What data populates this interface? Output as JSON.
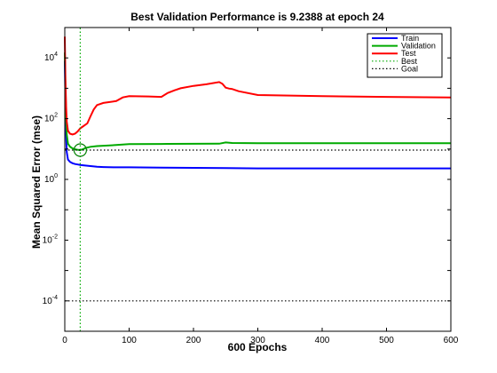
{
  "chart_data": {
    "type": "line",
    "title": "Best Validation Performance is 9.2388 at epoch 24",
    "xlabel": "600 Epochs",
    "ylabel": "Mean Squared Error  (mse)",
    "xlim": [
      0,
      600
    ],
    "ylim": [
      1e-05,
      100000
    ],
    "yscale": "log",
    "grid": false,
    "legend_position": "top-right",
    "x_ticks": [
      0,
      100,
      200,
      300,
      400,
      500,
      600
    ],
    "y_ticks": [
      {
        "value": 0.0001,
        "base": "10",
        "exp": "-4"
      },
      {
        "value": 0.01,
        "base": "10",
        "exp": "-2"
      },
      {
        "value": 1,
        "base": "10",
        "exp": "0"
      },
      {
        "value": 100,
        "base": "10",
        "exp": "2"
      },
      {
        "value": 10000,
        "base": "10",
        "exp": "4"
      }
    ],
    "series": [
      {
        "name": "Train",
        "color": "#0000ff",
        "style": "solid",
        "x": [
          0,
          1,
          2,
          3,
          5,
          8,
          12,
          16,
          20,
          24,
          30,
          40,
          50,
          60,
          80,
          100,
          150,
          200,
          250,
          300,
          400,
          500,
          600
        ],
        "y": [
          8000,
          500,
          30,
          8,
          4.5,
          3.8,
          3.4,
          3.2,
          3.1,
          3.0,
          2.9,
          2.75,
          2.6,
          2.55,
          2.5,
          2.5,
          2.45,
          2.4,
          2.35,
          2.3,
          2.3,
          2.3,
          2.3
        ]
      },
      {
        "name": "Validation",
        "color": "#00aa00",
        "style": "solid",
        "x": [
          0,
          1,
          2,
          3,
          5,
          8,
          12,
          16,
          20,
          24,
          28,
          32,
          40,
          50,
          60,
          80,
          100,
          150,
          160,
          240,
          250,
          260,
          300,
          400,
          500,
          600
        ],
        "y": [
          15000,
          1500,
          100,
          30,
          15,
          12,
          10.5,
          9.8,
          9.5,
          9.2388,
          9.8,
          10.8,
          11.8,
          12.5,
          12.8,
          13.5,
          14.5,
          14.7,
          14.8,
          15,
          16.5,
          15.8,
          15.5,
          15.5,
          15.5,
          15.5
        ]
      },
      {
        "name": "Test",
        "color": "#ff0000",
        "style": "solid",
        "x": [
          0,
          1,
          2,
          3,
          5,
          8,
          12,
          16,
          20,
          24,
          28,
          35,
          40,
          45,
          50,
          60,
          80,
          90,
          100,
          130,
          150,
          160,
          170,
          180,
          200,
          220,
          240,
          245,
          250,
          255,
          260,
          270,
          300,
          400,
          500,
          600
        ],
        "y": [
          50000,
          2000,
          250,
          80,
          40,
          32,
          30,
          32,
          38,
          48,
          55,
          70,
          120,
          200,
          280,
          330,
          380,
          500,
          550,
          540,
          520,
          700,
          850,
          1000,
          1200,
          1350,
          1600,
          1400,
          1050,
          980,
          950,
          800,
          600,
          550,
          520,
          500
        ]
      },
      {
        "name": "Best",
        "color": "#00aa00",
        "style": "dotted",
        "x": [
          24,
          24
        ],
        "y": [
          1e-05,
          100000
        ]
      },
      {
        "name": "Goal",
        "color": "#000000",
        "style": "dotted",
        "x": [
          0,
          600
        ],
        "y": [
          0.0001,
          0.0001
        ]
      },
      {
        "name": "Best",
        "color": "#000000",
        "style": "dotted",
        "x": [
          0,
          600
        ],
        "y": [
          9.2388,
          9.2388
        ]
      }
    ],
    "best_marker": {
      "x": 24,
      "y": 9.2388,
      "color": "#008000"
    }
  }
}
